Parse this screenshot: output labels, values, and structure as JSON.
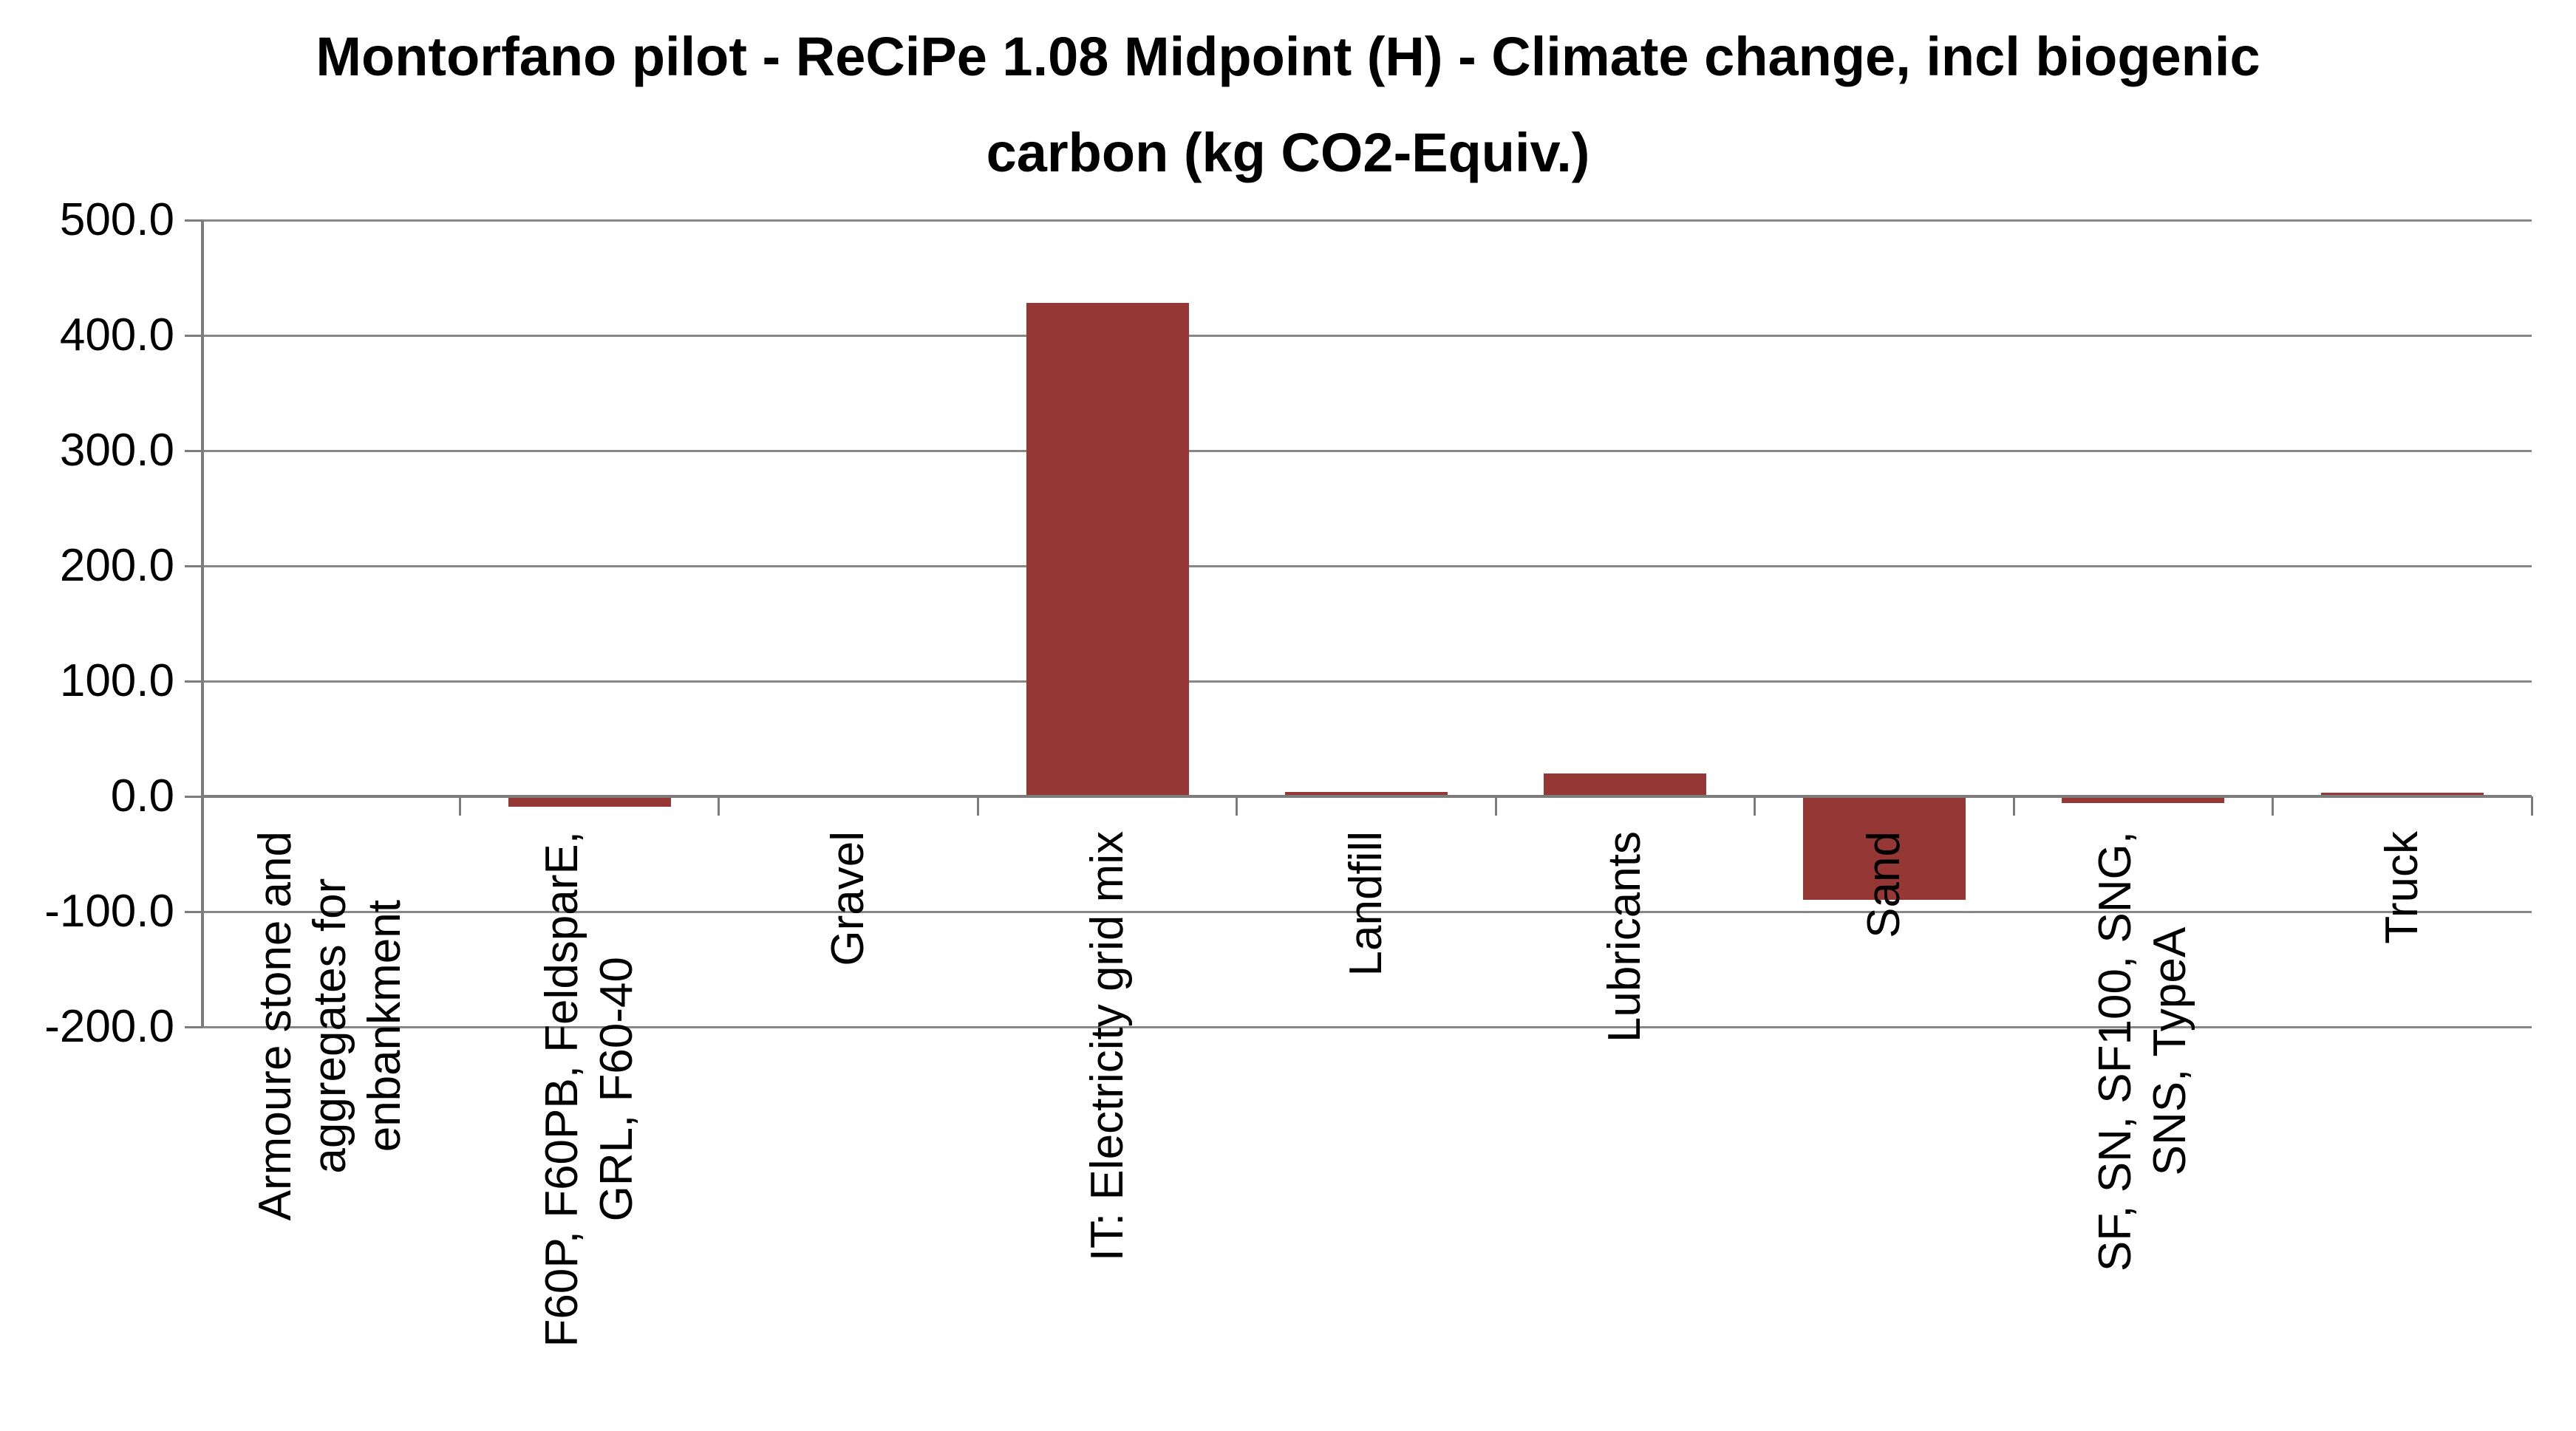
{
  "chart_data": {
    "type": "bar",
    "title": "Montorfano pilot - ReCiPe 1.08 Midpoint (H) - Climate change, incl biogenic carbon (kg CO2-Equiv.)",
    "title_lines": [
      "Montorfano pilot - ReCiPe 1.08 Midpoint (H) - Climate change, incl biogenic",
      "carbon (kg CO2-Equiv.)"
    ],
    "unit": "kg CO2-Equiv.",
    "categories": [
      "Armoure stone and aggregates for enbankment",
      "F60P, F60PB, FeldsparE, GRL, F60-40",
      "Gravel",
      "IT: Electricity grid mix",
      "Landfill",
      "Lubricants",
      "Sand",
      "SF, SN, SF100, SNG, SNS, TypeA",
      "Truck"
    ],
    "category_label_lines": [
      [
        "Armoure stone and",
        "aggregates for",
        "enbankment"
      ],
      [
        "F60P, F60PB, FeldsparE,",
        "GRL, F60-40"
      ],
      [
        "Gravel"
      ],
      [
        "IT: Electricity grid mix"
      ],
      [
        "Landfill"
      ],
      [
        "Lubricants"
      ],
      [
        "Sand"
      ],
      [
        "SF, SN, SF100, SNG,",
        "SNS, TypeA"
      ],
      [
        "Truck"
      ]
    ],
    "values": [
      0,
      -9,
      0,
      428,
      4,
      20,
      -90,
      -6,
      3
    ],
    "ylim": [
      -200,
      500
    ],
    "ytick_step": 100,
    "ytick_labels": [
      "500.0",
      "400.0",
      "300.0",
      "200.0",
      "100.0",
      "0.0",
      "-100.0",
      "-200.0"
    ],
    "xlabel": "",
    "ylabel": "",
    "grid": true,
    "legend_position": "none",
    "bar_color": "#953735",
    "gridline_color": "#878787",
    "axis_color": "#7C7C7C",
    "text_color": "#000000"
  }
}
